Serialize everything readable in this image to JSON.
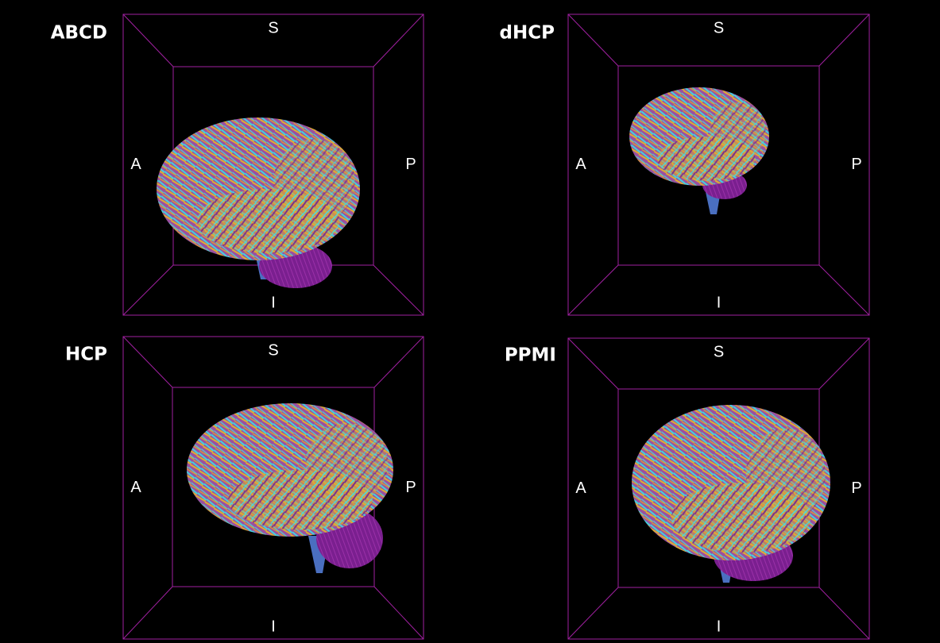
{
  "panels": [
    {
      "title": "ABCD",
      "labels": {
        "superior": "S",
        "anterior": "A",
        "posterior": "P",
        "inferior": "I"
      }
    },
    {
      "title": "dHCP",
      "labels": {
        "superior": "S",
        "anterior": "A",
        "posterior": "P",
        "inferior": "I"
      }
    },
    {
      "title": "HCP",
      "labels": {
        "superior": "S",
        "anterior": "A",
        "posterior": "P",
        "inferior": "I"
      }
    },
    {
      "title": "PPMI",
      "labels": {
        "superior": "S",
        "anterior": "A",
        "posterior": "P",
        "inferior": "I"
      }
    }
  ]
}
